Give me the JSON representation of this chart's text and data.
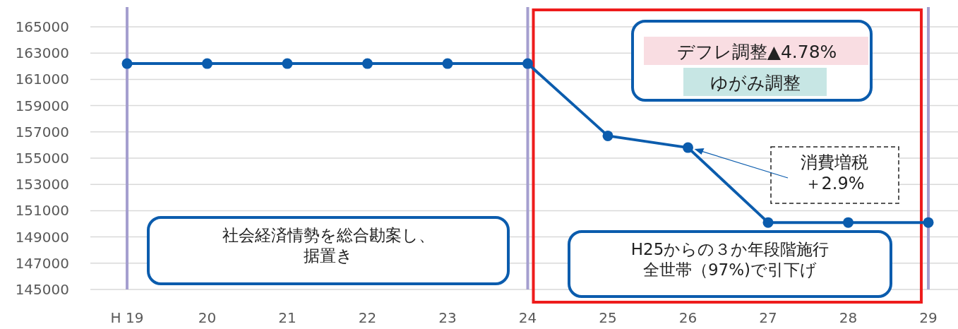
{
  "chart_data": {
    "type": "line",
    "categories": [
      "H 19",
      "20",
      "21",
      "22",
      "23",
      "24",
      "25",
      "26",
      "27",
      "28",
      "29"
    ],
    "series": [
      {
        "color": "#0b5cad",
        "values": [
          162200,
          162200,
          162200,
          162200,
          162200,
          162200,
          156700,
          155800,
          150100,
          150100,
          150100
        ]
      }
    ],
    "ylim": [
      145000,
      165000
    ],
    "yticks": [
      145000,
      147000,
      149000,
      151000,
      153000,
      155000,
      157000,
      159000,
      161000,
      163000,
      165000
    ],
    "grid": "y",
    "marker": "circle",
    "line_style": "solid",
    "ref_lines": [
      {
        "axis": "x",
        "value": "H 19",
        "color": "#a59fcf"
      },
      {
        "axis": "x",
        "value": "24",
        "color": "#a59fcf"
      },
      {
        "axis": "x",
        "value": "29",
        "color": "#a59fcf"
      }
    ],
    "annotations": [
      "デフレ調整▲4.78%",
      "ゆがみ調整",
      "消費増税",
      "＋2.9%",
      "社会経済情勢を総合勘案し、",
      "据置き",
      "H25からの３か年段階施行",
      "全世帯（97%)で引下げ"
    ]
  }
}
